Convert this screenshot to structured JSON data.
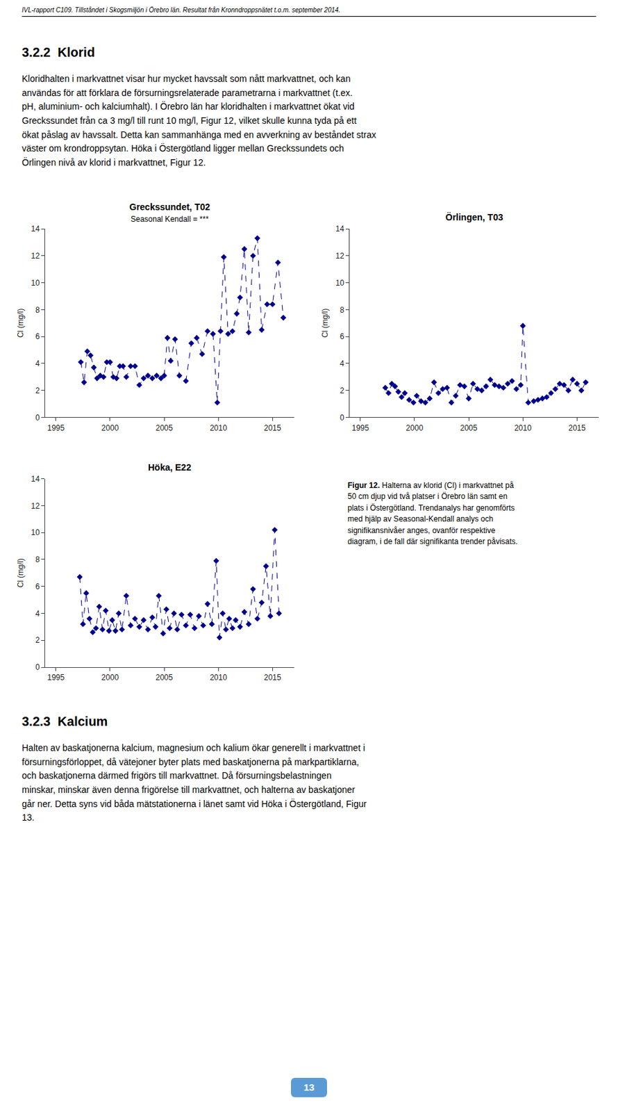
{
  "page_header": "IVL-rapport C109. Tillståndet i Skogsmiljön i Örebro län. Resultat från Kronndroppsnätet t.o.m. september 2014.",
  "section_title": "3.2.2  Klorid",
  "body_text": "Kloridhalten i markvattnet visar hur mycket havssalt som nått markvattnet, och kan\nanvändas för att förklara de försurningsrelaterade parametrarna i markvattnet (t.ex.\npH, aluminium- och kalciumhalt). I Örebro län har kloridhalten i markvattnet ökat vid\nGreckssundet från ca 3 mg/l till runt 10 mg/l, Figur 12, vilket skulle kunna tyda på ett\nökat påslag av havssalt. Detta kan sammanhänga med en avverkning av beståndet strax\nväster om krondroppsytan. Höka i Östergötland ligger mellan Greckssundets och\nÖrlingen nivå av klorid i markvattnet, Figur 12.",
  "caption_bold": "Figur 12.",
  "caption_text": " Halterna av klorid (Cl) i markvattnet på\n50 cm djup vid två platser i Örebro län samt en\nplats i Östergötland. Trendanalys har genomförts\nmed hjälp av Seasonal-Kendall analys och\nsignifikansnivåer anges, ovanför respektive\ndiagram, i de fall där signifikanta trender påvisats.",
  "section_title2": "3.2.3  Kalcium",
  "body_text2": "Halten av baskatjonerna kalcium, magnesium och kalium ökar generellt i markvattnet i\nförsurningsförloppet, då vätejoner byter plats med baskatjonerna på markpartiklarna,\noch baskatjonerna därmed frigörs till markvattnet. Då försurningsbelastningen\nminskar, minskar även denna frigörelse till markvattnet, och halterna av baskatjoner\ngår ner. Detta syns vid båda mätstationerna i länet samt vid Höka i Östergötland, Figur\n13.",
  "page_number": "13",
  "page_number_color": "#5b9bd5",
  "chart_data": [
    {
      "type": "line",
      "title": "Greckssundet, T02",
      "subtitle": "Seasonal Kendall = ***",
      "y_label": "Cl (mg/l)",
      "color": "#00008B",
      "marker": "diamond",
      "line_style": "dash",
      "grid": false,
      "xlim": [
        1994,
        2017
      ],
      "xticks": [
        1995,
        2000,
        2005,
        2010,
        2015
      ],
      "ylim": [
        0,
        14
      ],
      "yticks": [
        0,
        2,
        4,
        6,
        8,
        10,
        12,
        14
      ],
      "x": [
        1997.3,
        1997.6,
        1997.9,
        1998.2,
        1998.5,
        1998.8,
        1999.1,
        1999.4,
        1999.7,
        2000.0,
        2000.3,
        2000.6,
        2000.9,
        2001.2,
        2001.5,
        2001.9,
        2002.3,
        2002.7,
        2003.1,
        2003.5,
        2003.9,
        2004.3,
        2004.7,
        2005.0,
        2005.3,
        2005.6,
        2006.0,
        2006.4,
        2007.0,
        2007.5,
        2008.0,
        2008.5,
        2009.0,
        2009.5,
        2009.9,
        2010.2,
        2010.5,
        2010.9,
        2011.3,
        2011.7,
        2012.0,
        2012.4,
        2012.8,
        2013.2,
        2013.6,
        2014.0,
        2014.5,
        2015.0,
        2015.5,
        2016.0
      ],
      "values": [
        4.1,
        2.6,
        4.9,
        4.6,
        3.7,
        2.9,
        3.1,
        3.0,
        4.1,
        4.1,
        3.0,
        2.9,
        3.8,
        3.8,
        3.0,
        3.8,
        3.8,
        2.4,
        2.9,
        3.1,
        2.9,
        3.1,
        2.9,
        3.1,
        5.9,
        4.2,
        5.8,
        3.1,
        2.7,
        5.5,
        5.9,
        4.7,
        6.4,
        6.2,
        1.1,
        6.4,
        11.9,
        6.2,
        6.4,
        7.7,
        8.9,
        12.5,
        6.3,
        12.0,
        13.3,
        6.5,
        8.4,
        8.4,
        11.5,
        7.4
      ]
    },
    {
      "type": "line",
      "title": "Örlingen, T03",
      "y_label": "Cl (mg/l)",
      "color": "#00008B",
      "marker": "diamond",
      "line_style": "dash",
      "grid": false,
      "xlim": [
        1994,
        2017
      ],
      "xticks": [
        1995,
        2000,
        2005,
        2010,
        2015
      ],
      "ylim": [
        0,
        14
      ],
      "yticks": [
        0,
        2,
        4,
        6,
        8,
        10,
        12,
        14
      ],
      "x": [
        1997.3,
        1997.6,
        1997.9,
        1998.2,
        1998.5,
        1998.8,
        1999.1,
        1999.5,
        1999.9,
        2000.2,
        2000.6,
        2001.0,
        2001.4,
        2001.8,
        2002.2,
        2002.6,
        2003.0,
        2003.4,
        2003.8,
        2004.2,
        2004.6,
        2005.0,
        2005.4,
        2005.8,
        2006.2,
        2006.6,
        2007.0,
        2007.4,
        2007.8,
        2008.2,
        2008.6,
        2009.0,
        2009.4,
        2009.8,
        2010.0,
        2010.5,
        2011.0,
        2011.4,
        2011.8,
        2012.2,
        2012.6,
        2013.0,
        2013.4,
        2013.8,
        2014.2,
        2014.6,
        2015.0,
        2015.4,
        2015.8
      ],
      "values": [
        2.2,
        1.8,
        2.5,
        2.3,
        1.9,
        1.5,
        1.8,
        1.3,
        1.1,
        1.6,
        1.2,
        1.1,
        1.4,
        2.6,
        1.8,
        2.1,
        2.2,
        1.1,
        1.6,
        2.4,
        2.3,
        1.4,
        2.5,
        2.1,
        2.0,
        2.3,
        2.8,
        2.4,
        2.3,
        2.2,
        2.5,
        2.7,
        2.1,
        2.4,
        6.8,
        1.1,
        1.2,
        1.3,
        1.4,
        1.5,
        1.8,
        2.1,
        2.5,
        2.4,
        2.0,
        2.8,
        2.5,
        2.0,
        2.6
      ]
    },
    {
      "type": "line",
      "title": "Höka, E22",
      "y_label": "Cl (mg/l)",
      "color": "#00008B",
      "marker": "diamond",
      "line_style": "dash",
      "grid": false,
      "xlim": [
        1994,
        2017
      ],
      "xticks": [
        1995,
        2000,
        2005,
        2010,
        2015
      ],
      "ylim": [
        0,
        14
      ],
      "yticks": [
        0,
        2,
        4,
        6,
        8,
        10,
        12,
        14
      ],
      "x": [
        1997.2,
        1997.5,
        1997.8,
        1998.1,
        1998.4,
        1998.7,
        1999.0,
        1999.3,
        1999.6,
        1999.9,
        2000.2,
        2000.5,
        2000.8,
        2001.1,
        2001.5,
        2001.9,
        2002.3,
        2002.7,
        2003.1,
        2003.5,
        2003.9,
        2004.2,
        2004.5,
        2004.9,
        2005.2,
        2005.5,
        2005.9,
        2006.2,
        2006.6,
        2007.0,
        2007.4,
        2007.8,
        2008.2,
        2008.6,
        2009.0,
        2009.4,
        2009.8,
        2010.1,
        2010.4,
        2010.7,
        2011.0,
        2011.3,
        2011.6,
        2012.0,
        2012.4,
        2012.8,
        2013.2,
        2013.6,
        2014.0,
        2014.4,
        2014.8,
        2015.2,
        2015.6
      ],
      "values": [
        6.7,
        3.2,
        5.5,
        3.6,
        2.6,
        2.9,
        4.5,
        2.8,
        4.2,
        2.7,
        3.5,
        2.7,
        4.0,
        2.8,
        5.3,
        3.1,
        3.6,
        3.0,
        3.5,
        2.8,
        3.7,
        3.0,
        5.3,
        2.5,
        4.3,
        2.9,
        4.0,
        2.8,
        3.9,
        3.1,
        3.9,
        2.9,
        3.8,
        3.1,
        4.7,
        3.2,
        7.9,
        2.2,
        4.0,
        2.8,
        3.6,
        2.9,
        3.5,
        3.0,
        4.1,
        3.2,
        5.8,
        3.6,
        4.8,
        7.5,
        3.8,
        10.2,
        4.0
      ]
    }
  ]
}
